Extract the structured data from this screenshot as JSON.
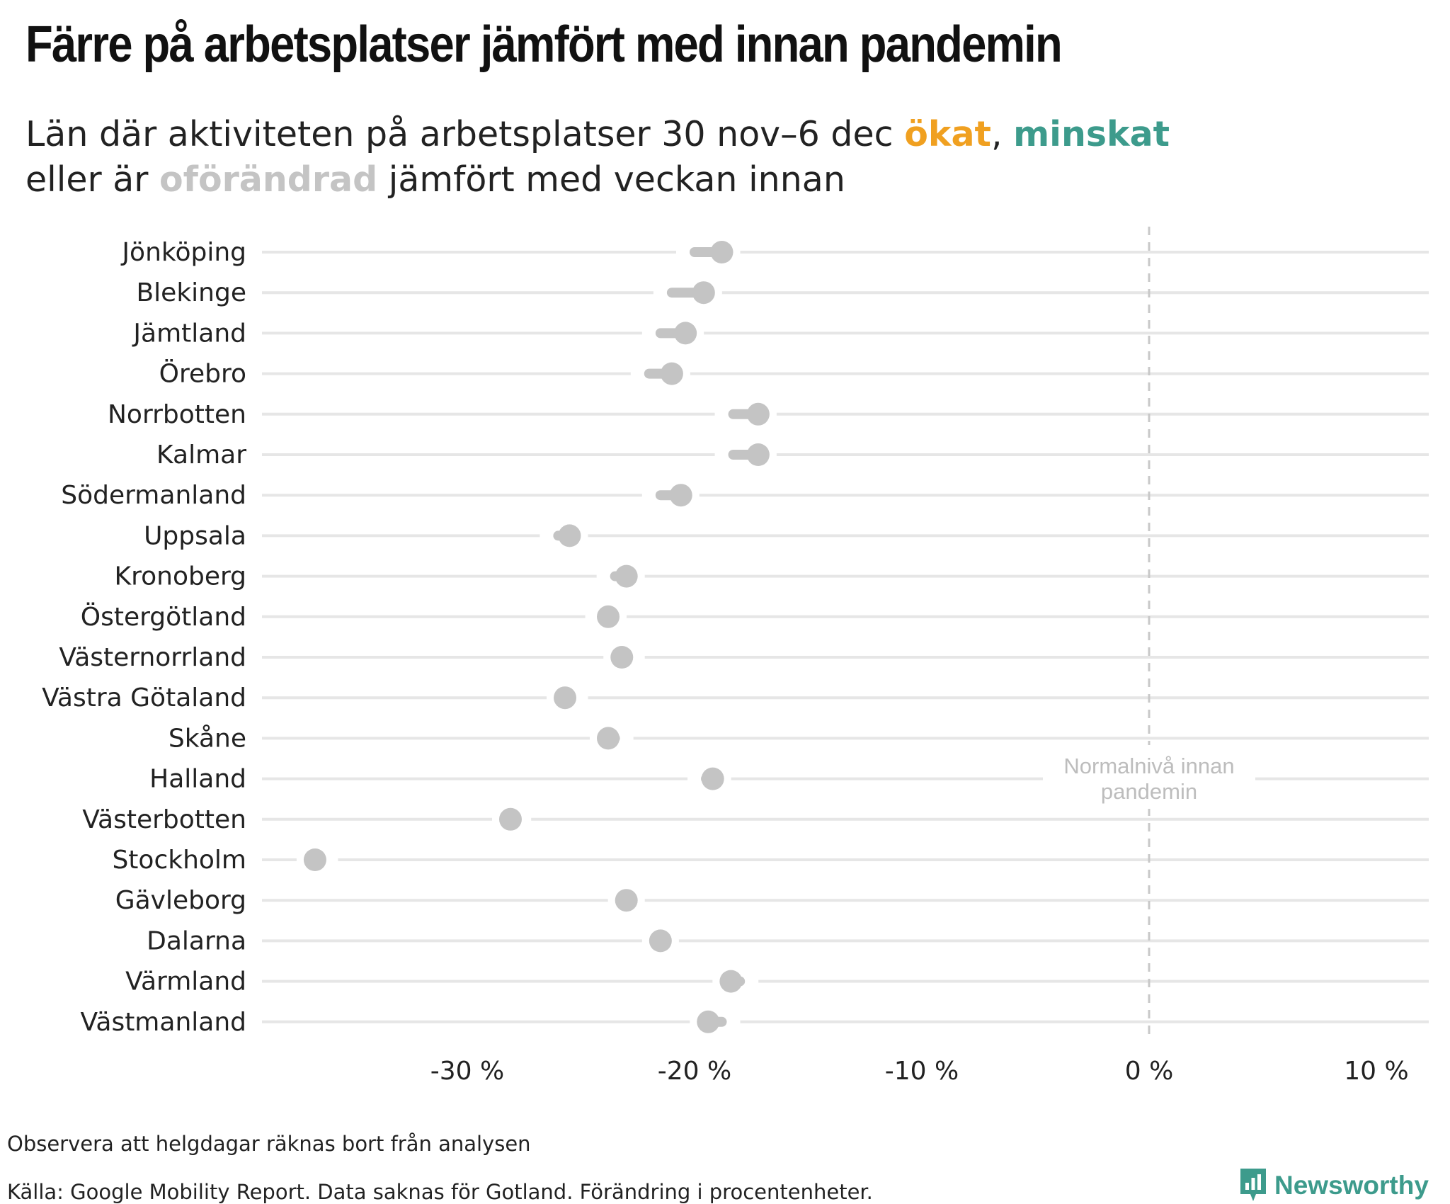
{
  "title": "Färre på arbetsplatser jämfört med innan pandemin",
  "subtitle": {
    "line1_prefix": "Län där aktiviteten på arbetsplatser 30 nov–6 dec ",
    "okat": "ökat",
    "comma": ", ",
    "minskat": "minskat",
    "line2_prefix": "eller är ",
    "oforandrad": "oförändrad",
    "line2_suffix": " jämfört med veckan innan"
  },
  "colors": {
    "okat": "#f0a020",
    "minskat": "#3d9b8c",
    "oforandrad": "#c4c4c4",
    "gridline": "#e6e6e6",
    "reference_line": "#c8c8c8"
  },
  "chart_data": {
    "type": "scatter",
    "x_unit": "%",
    "xlim": [
      -39,
      12.5
    ],
    "x_ticks": [
      -30,
      -20,
      -10,
      0,
      10
    ],
    "x_tick_labels": [
      "-30 %",
      "-20 %",
      "-10 %",
      "0 %",
      "10 %"
    ],
    "reference_line": {
      "x": 0,
      "label": "Normalnivå innan pandemin"
    },
    "categories": [
      "Jönköping",
      "Blekinge",
      "Jämtland",
      "Örebro",
      "Norrbotten",
      "Kalmar",
      "Södermanland",
      "Uppsala",
      "Kronoberg",
      "Östergötland",
      "Västernorrland",
      "Västra Götaland",
      "Skåne",
      "Halland",
      "Västerbotten",
      "Stockholm",
      "Gävleborg",
      "Dalarna",
      "Värmland",
      "Västmanland"
    ],
    "series": [
      {
        "name": "vecka innan",
        "values": [
          -20,
          -21,
          -21.5,
          -22,
          -18.3,
          -18.3,
          -21.5,
          -26,
          -23.5,
          -24,
          -23,
          -25.5,
          -23.5,
          -19.5,
          -28,
          -36.5,
          -23,
          -21.5,
          -18,
          -18.8
        ]
      },
      {
        "name": "30 nov–6 dec",
        "values": [
          -18.8,
          -19.6,
          -20.4,
          -21,
          -17.2,
          -17.2,
          -20.6,
          -25.5,
          -23,
          -23.8,
          -23.2,
          -25.7,
          -23.8,
          -19.2,
          -28.1,
          -36.7,
          -23,
          -21.5,
          -18.4,
          -19.4
        ]
      }
    ],
    "status": "oförändrad"
  },
  "footnotes": {
    "note": "Observera att helgdagar räknas bort från analysen",
    "source": "Källa: Google Mobility Report. Data saknas för Gotland. Förändring i procentenheter."
  },
  "logo": {
    "text": "Newsworthy",
    "icon": "newsworthy-logo-icon"
  }
}
